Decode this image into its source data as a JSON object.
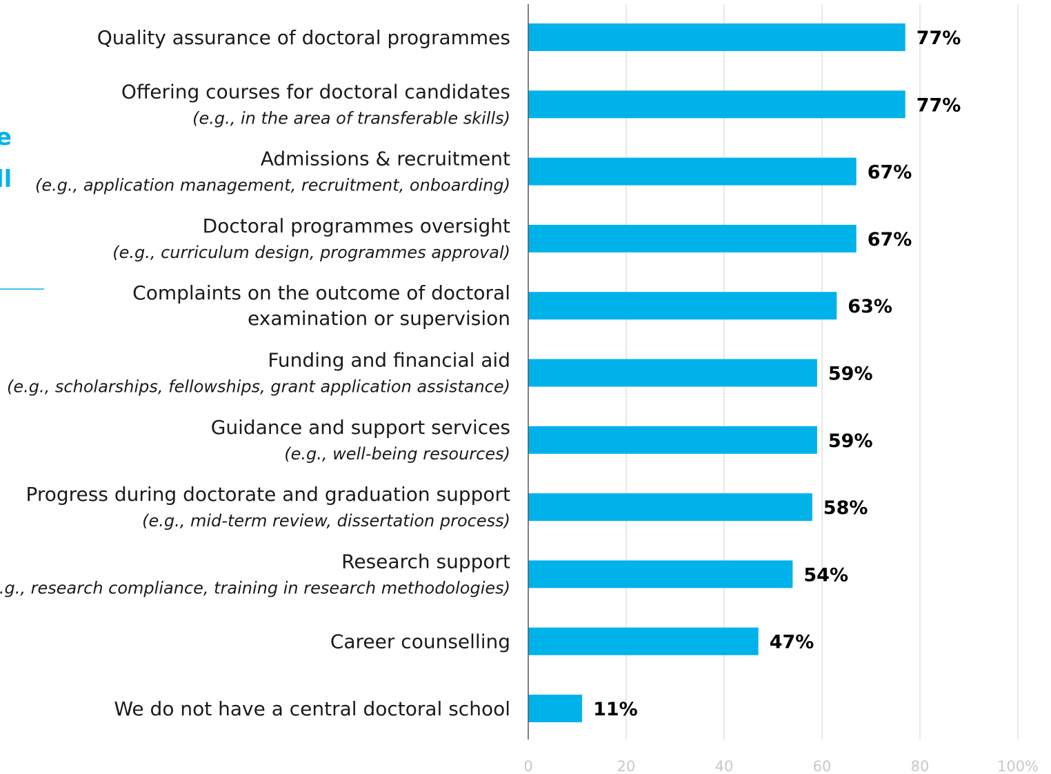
{
  "side_fragments": [
    "e",
    "ll"
  ],
  "chart_data": {
    "type": "bar",
    "orientation": "horizontal",
    "categories": [
      {
        "label": "Quality assurance of doctoral programmes",
        "sublabel": ""
      },
      {
        "label": "Offering courses for doctoral candidates",
        "sublabel": "(e.g., in the area of transferable skills)"
      },
      {
        "label": "Admissions & recruitment",
        "sublabel": "(e.g., application management, recruitment, onboarding)"
      },
      {
        "label": "Doctoral programmes oversight",
        "sublabel": "(e.g., curriculum design, programmes approval)"
      },
      {
        "label": "Complaints on the outcome of doctoral",
        "sublabel": "examination or supervision",
        "sublabel_italic": false
      },
      {
        "label": "Funding and financial aid",
        "sublabel": "(e.g., scholarships, fellowships, grant application assistance)"
      },
      {
        "label": "Guidance and support services",
        "sublabel": "(e.g., well-being resources)"
      },
      {
        "label": "Progress during doctorate and graduation support",
        "sublabel": "(e.g., mid-term review, dissertation process)"
      },
      {
        "label": "Research support",
        "sublabel": "(e.g., research compliance, training in research methodologies)"
      },
      {
        "label": "Career counselling",
        "sublabel": ""
      },
      {
        "label": "We do not have a central doctoral school",
        "sublabel": ""
      }
    ],
    "values": [
      77,
      77,
      67,
      67,
      63,
      59,
      59,
      58,
      54,
      47,
      11
    ],
    "value_labels": [
      "77%",
      "77%",
      "67%",
      "67%",
      "63%",
      "59%",
      "59%",
      "58%",
      "54%",
      "47%",
      "11%"
    ],
    "xlim": [
      0,
      100
    ],
    "x_ticks": [
      0,
      20,
      40,
      60,
      80,
      100
    ],
    "x_tick_labels": [
      "0",
      "20",
      "40",
      "60",
      "80",
      "100%"
    ],
    "bar_color": "#00b2ea",
    "grid": true,
    "title": "",
    "xlabel": "",
    "ylabel": ""
  }
}
